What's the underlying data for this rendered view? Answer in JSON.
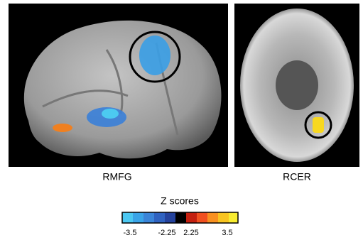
{
  "panels": [
    {
      "label": "RMFG"
    },
    {
      "label": "RCER"
    }
  ],
  "legend": {
    "title": "Z scores",
    "tick_labels": [
      "-3.5",
      "-2.25",
      "2.25",
      "3.5"
    ]
  }
}
